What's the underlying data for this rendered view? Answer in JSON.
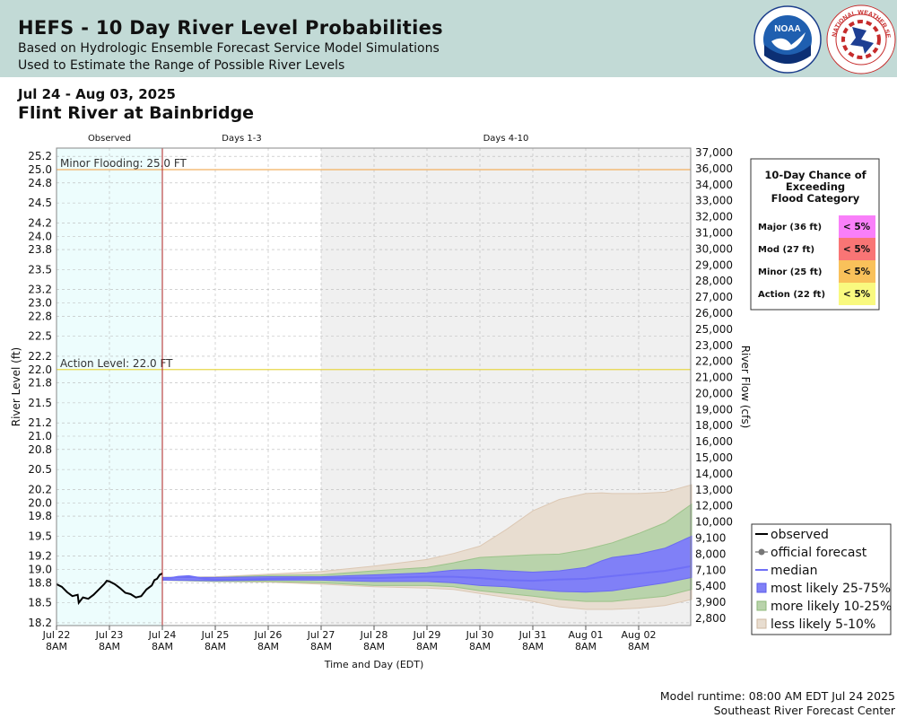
{
  "header": {
    "title": "HEFS - 10 Day River Level Probabilities",
    "subtitle1": "Based on Hydrologic Ensemble Forecast Service Model Simulations",
    "subtitle2": "Used to Estimate the Range of Possible River Levels",
    "noaa_logo_text": "NOAA",
    "nws_logo_text": "NATIONAL WEATHER SERVICE"
  },
  "date_range": "Jul 24 - Aug 03, 2025",
  "station": "Flint River at Bainbridge",
  "colors": {
    "header_bg": "#c2dad6",
    "observed_bg": "#edfdfd",
    "days4_10_bg": "#f0f0f0",
    "minor_line": "#f2b061",
    "action_line": "#e8d84a",
    "median": "#6f6ff7",
    "band_25_75": "#8080f7",
    "band_10_25": "#b9d3ab",
    "band_5_10": "#e8ddd0",
    "major": "#f97ff9",
    "mod": "#f97575",
    "minor": "#f9c15a",
    "action": "#f9f97f"
  },
  "chart_data": {
    "type": "area",
    "period_labels": [
      "Observed",
      "Days 1-3",
      "Days 4-10"
    ],
    "xlabel": "Time and Day (EDT)",
    "ylabel": "River Level (ft)",
    "y2label": "River Flow (cfs)",
    "ylim": [
      18.15,
      25.25
    ],
    "xlim": [
      0,
      12
    ],
    "grid": true,
    "stage_ticks": [
      "25.2",
      "25.0",
      "24.8",
      "24.5",
      "24.2",
      "24.0",
      "23.8",
      "23.5",
      "23.2",
      "23.0",
      "22.8",
      "22.5",
      "22.2",
      "22.0",
      "21.8",
      "21.5",
      "21.2",
      "21.0",
      "20.8",
      "20.5",
      "20.2",
      "20.0",
      "19.8",
      "19.5",
      "19.2",
      "19.0",
      "18.8",
      "18.5",
      "18.2"
    ],
    "flow_ticks": [
      "37,000",
      "36,000",
      "34,000",
      "33,000",
      "32,000",
      "31,000",
      "30,000",
      "29,000",
      "28,000",
      "27,000",
      "26,000",
      "25,000",
      "23,000",
      "22,000",
      "21,000",
      "20,000",
      "19,000",
      "18,000",
      "16,000",
      "15,000",
      "14,000",
      "13,000",
      "12,000",
      "10,000",
      "9,100",
      "8,000",
      "7,100",
      "5,400",
      "3,900",
      "2,800"
    ],
    "x_ticks": [
      {
        "x": 0,
        "l1": "Jul 22",
        "l2": "8AM"
      },
      {
        "x": 1,
        "l1": "Jul 23",
        "l2": "8AM"
      },
      {
        "x": 2,
        "l1": "Jul 24",
        "l2": "8AM"
      },
      {
        "x": 3,
        "l1": "Jul 25",
        "l2": "8AM"
      },
      {
        "x": 4,
        "l1": "Jul 26",
        "l2": "8AM"
      },
      {
        "x": 5,
        "l1": "Jul 27",
        "l2": "8AM"
      },
      {
        "x": 6,
        "l1": "Jul 28",
        "l2": "8AM"
      },
      {
        "x": 7,
        "l1": "Jul 29",
        "l2": "8AM"
      },
      {
        "x": 8,
        "l1": "Jul 30",
        "l2": "8AM"
      },
      {
        "x": 9,
        "l1": "Jul 31",
        "l2": "8AM"
      },
      {
        "x": 10,
        "l1": "Aug 01",
        "l2": "8AM"
      },
      {
        "x": 11,
        "l1": "Aug 02",
        "l2": "8AM"
      }
    ],
    "flood_lines": [
      {
        "label": "Minor Flooding: 25.0 FT",
        "value": 25.0
      },
      {
        "label": "Action Level: 22.0 FT",
        "value": 22.0
      }
    ],
    "observed": [
      [
        0,
        18.78
      ],
      [
        0.1,
        18.74
      ],
      [
        0.2,
        18.66
      ],
      [
        0.3,
        18.6
      ],
      [
        0.4,
        18.62
      ],
      [
        0.42,
        18.5
      ],
      [
        0.5,
        18.58
      ],
      [
        0.6,
        18.56
      ],
      [
        0.7,
        18.62
      ],
      [
        0.8,
        18.7
      ],
      [
        0.9,
        18.78
      ],
      [
        0.95,
        18.83
      ],
      [
        1.0,
        18.82
      ],
      [
        1.1,
        18.78
      ],
      [
        1.2,
        18.72
      ],
      [
        1.3,
        18.65
      ],
      [
        1.4,
        18.63
      ],
      [
        1.5,
        18.58
      ],
      [
        1.6,
        18.6
      ],
      [
        1.7,
        18.7
      ],
      [
        1.8,
        18.76
      ],
      [
        1.85,
        18.84
      ],
      [
        1.9,
        18.86
      ],
      [
        1.95,
        18.92
      ],
      [
        2.0,
        18.94
      ]
    ],
    "median": [
      [
        2.0,
        18.85
      ],
      [
        2.3,
        18.89
      ],
      [
        2.5,
        18.9
      ],
      [
        2.8,
        18.86
      ],
      [
        3.0,
        18.85
      ],
      [
        3.5,
        18.85
      ],
      [
        4.0,
        18.86
      ],
      [
        5.0,
        18.87
      ],
      [
        6.0,
        18.87
      ],
      [
        7.0,
        18.89
      ],
      [
        7.5,
        18.89
      ],
      [
        8.0,
        18.87
      ],
      [
        8.5,
        18.84
      ],
      [
        9.0,
        18.83
      ],
      [
        9.5,
        18.85
      ],
      [
        10.0,
        18.86
      ],
      [
        10.5,
        18.9
      ],
      [
        11.0,
        18.94
      ],
      [
        11.5,
        18.98
      ],
      [
        12.0,
        19.05
      ]
    ],
    "band_25_75": {
      "upper": [
        [
          2.0,
          18.88
        ],
        [
          3.0,
          18.88
        ],
        [
          4.0,
          18.89
        ],
        [
          5.0,
          18.89
        ],
        [
          6.0,
          18.92
        ],
        [
          7.0,
          18.95
        ],
        [
          7.5,
          18.99
        ],
        [
          8.0,
          19.0
        ],
        [
          8.5,
          18.98
        ],
        [
          9.0,
          18.96
        ],
        [
          9.5,
          18.98
        ],
        [
          10.0,
          19.03
        ],
        [
          10.3,
          19.13
        ],
        [
          10.5,
          19.18
        ],
        [
          11.0,
          19.23
        ],
        [
          11.5,
          19.32
        ],
        [
          12.0,
          19.5
        ]
      ],
      "lower": [
        [
          2.0,
          18.84
        ],
        [
          3.0,
          18.83
        ],
        [
          4.0,
          18.84
        ],
        [
          5.0,
          18.84
        ],
        [
          6.0,
          18.82
        ],
        [
          7.0,
          18.82
        ],
        [
          7.5,
          18.8
        ],
        [
          8.0,
          18.76
        ],
        [
          8.5,
          18.74
        ],
        [
          9.0,
          18.7
        ],
        [
          9.5,
          18.67
        ],
        [
          10.0,
          18.66
        ],
        [
          10.5,
          18.68
        ],
        [
          11.0,
          18.74
        ],
        [
          11.5,
          18.8
        ],
        [
          12.0,
          18.88
        ]
      ]
    },
    "band_10_25": {
      "upper": [
        [
          2.0,
          18.88
        ],
        [
          3.0,
          18.88
        ],
        [
          4.0,
          18.91
        ],
        [
          5.0,
          18.92
        ],
        [
          6.0,
          18.98
        ],
        [
          7.0,
          19.03
        ],
        [
          7.5,
          19.1
        ],
        [
          8.0,
          19.18
        ],
        [
          8.5,
          19.2
        ],
        [
          9.0,
          19.22
        ],
        [
          9.5,
          19.23
        ],
        [
          10.0,
          19.3
        ],
        [
          10.5,
          19.4
        ],
        [
          11.0,
          19.54
        ],
        [
          11.5,
          19.7
        ],
        [
          12.0,
          19.98
        ]
      ],
      "lower": [
        [
          2.0,
          18.84
        ],
        [
          3.0,
          18.82
        ],
        [
          4.0,
          18.82
        ],
        [
          5.0,
          18.8
        ],
        [
          6.0,
          18.76
        ],
        [
          7.0,
          18.76
        ],
        [
          7.5,
          18.74
        ],
        [
          8.0,
          18.68
        ],
        [
          8.5,
          18.64
        ],
        [
          9.0,
          18.6
        ],
        [
          9.5,
          18.55
        ],
        [
          10.0,
          18.52
        ],
        [
          10.5,
          18.52
        ],
        [
          11.0,
          18.56
        ],
        [
          11.5,
          18.6
        ],
        [
          12.0,
          18.7
        ]
      ]
    },
    "band_5_10": {
      "upper": [
        [
          2.0,
          18.88
        ],
        [
          3.0,
          18.89
        ],
        [
          4.0,
          18.93
        ],
        [
          5.0,
          18.97
        ],
        [
          6.0,
          19.05
        ],
        [
          7.0,
          19.15
        ],
        [
          7.5,
          19.24
        ],
        [
          8.0,
          19.35
        ],
        [
          8.5,
          19.6
        ],
        [
          9.0,
          19.88
        ],
        [
          9.5,
          20.05
        ],
        [
          10.0,
          20.14
        ],
        [
          10.3,
          20.15
        ],
        [
          10.5,
          20.14
        ],
        [
          11.0,
          20.14
        ],
        [
          11.5,
          20.16
        ],
        [
          12.0,
          20.27
        ]
      ],
      "lower": [
        [
          2.0,
          18.84
        ],
        [
          3.0,
          18.82
        ],
        [
          4.0,
          18.81
        ],
        [
          5.0,
          18.78
        ],
        [
          6.0,
          18.74
        ],
        [
          7.0,
          18.72
        ],
        [
          7.5,
          18.7
        ],
        [
          8.0,
          18.64
        ],
        [
          8.5,
          18.58
        ],
        [
          9.0,
          18.52
        ],
        [
          9.5,
          18.44
        ],
        [
          10.0,
          18.4
        ],
        [
          10.5,
          18.4
        ],
        [
          11.0,
          18.42
        ],
        [
          11.5,
          18.46
        ],
        [
          12.0,
          18.55
        ]
      ]
    },
    "legend": [
      "observed",
      "official forecast",
      "median",
      "most likely 25-75%",
      "more likely 10-25%",
      "less likely 5-10%"
    ]
  },
  "exceed_table": {
    "title_lines": [
      "10-Day Chance of",
      "Exceeding",
      "Flood Category"
    ],
    "rows": [
      {
        "label": "Major (36 ft)",
        "value": "< 5%"
      },
      {
        "label": "Mod (27 ft)",
        "value": "< 5%"
      },
      {
        "label": "Minor (25 ft)",
        "value": "< 5%"
      },
      {
        "label": "Action (22 ft)",
        "value": "< 5%"
      }
    ]
  },
  "footer": {
    "runtime": "Model runtime: 08:00 AM EDT Jul 24 2025",
    "center": "Southeast River Forecast Center"
  }
}
